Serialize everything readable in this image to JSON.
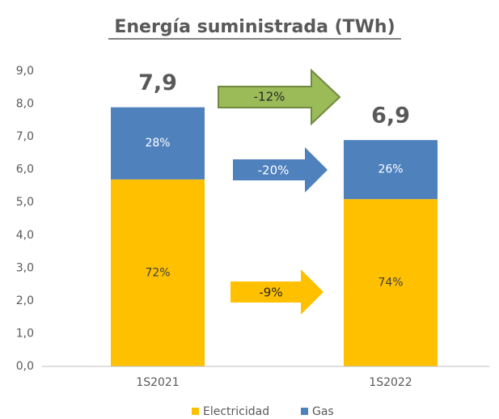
{
  "chart_data": {
    "type": "stacked_bar",
    "title": "Energía suministrada (TWh)",
    "categories": [
      "1S2021",
      "1S2022"
    ],
    "series": [
      {
        "name": "Electricidad",
        "color": "#ffc000",
        "values": [
          5.7,
          5.1
        ],
        "value_labels": [
          "72%",
          "74%"
        ],
        "label_color": "#404040"
      },
      {
        "name": "Gas",
        "color": "#4f81bd",
        "values": [
          2.2,
          1.8
        ],
        "value_labels": [
          "28%",
          "26%"
        ],
        "label_color": "#ffffff"
      }
    ],
    "total_labels": [
      "7,9",
      "6,9"
    ],
    "annotations": [
      "-12%",
      "-20%",
      "-9%"
    ],
    "ylim": [
      0,
      9
    ],
    "yticks": [
      {
        "value": 0,
        "label": "0,0"
      },
      {
        "value": 1,
        "label": "1,0"
      },
      {
        "value": 2,
        "label": "2,0"
      },
      {
        "value": 3,
        "label": "3,0"
      },
      {
        "value": 4,
        "label": "4,0"
      },
      {
        "value": 5,
        "label": "5,0"
      },
      {
        "value": 6,
        "label": "6,0"
      },
      {
        "value": 7,
        "label": "7,0"
      },
      {
        "value": 8,
        "label": "8,0"
      },
      {
        "value": 9,
        "label": "9,0"
      }
    ],
    "grid": false,
    "legend": "bottom"
  }
}
